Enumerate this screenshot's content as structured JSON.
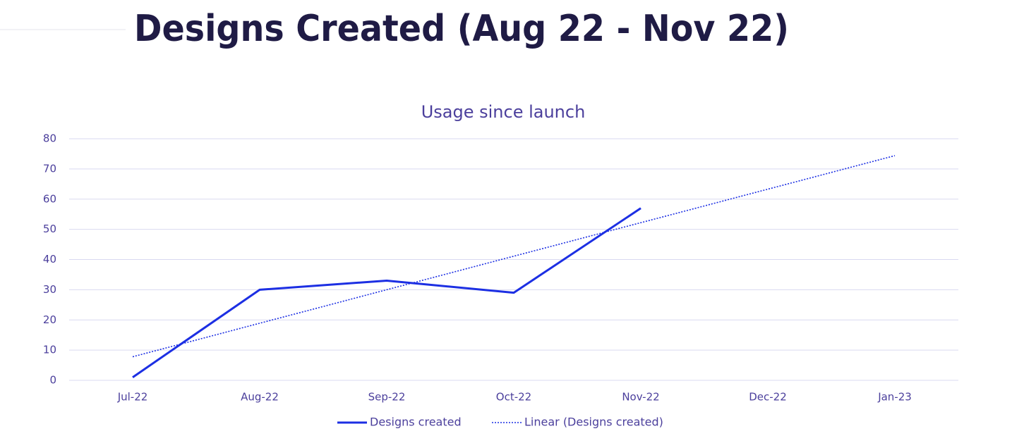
{
  "slide_title": "Designs Created (Aug 22 - Nov 22)",
  "chart_data": {
    "type": "line",
    "title": "Usage since launch",
    "categories": [
      "Jul-22",
      "Aug-22",
      "Sep-22",
      "Oct-22",
      "Nov-22",
      "Dec-22",
      "Jan-23"
    ],
    "series": [
      {
        "name": "Designs created",
        "color": "#1c2fe3",
        "style": "solid",
        "values": [
          1,
          30,
          33,
          29,
          57,
          null,
          null
        ]
      },
      {
        "name": "Linear (Designs created)",
        "color": "#1c2fe3",
        "style": "dotted",
        "values": [
          7.8,
          18.9,
          30,
          41.1,
          52.2,
          63.3,
          74.4
        ]
      }
    ],
    "ylim": [
      0,
      80
    ],
    "yticks": [
      0,
      10,
      20,
      30,
      40,
      50,
      60,
      70,
      80
    ],
    "grid": true,
    "legend": "bottom"
  }
}
